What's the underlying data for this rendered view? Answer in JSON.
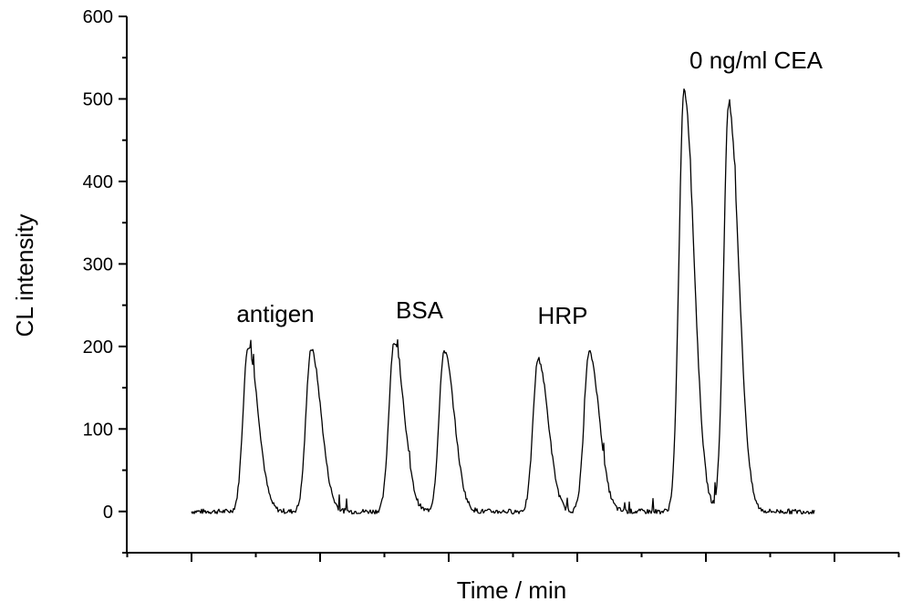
{
  "chart_data": {
    "type": "line",
    "title": "",
    "xlabel": "Time / min",
    "ylabel": "CL intensity",
    "ylim": [
      -50,
      600
    ],
    "yticks": [
      0,
      100,
      200,
      300,
      400,
      500,
      600
    ],
    "xtick_labels": "none",
    "grid": false,
    "legend": "none",
    "series": [
      {
        "peaks": [
          {
            "group": "antigen",
            "height": 200
          },
          {
            "group": "antigen",
            "height": 197
          },
          {
            "group": "BSA",
            "height": 205
          },
          {
            "group": "BSA",
            "height": 195
          },
          {
            "group": "HRP",
            "height": 185
          },
          {
            "group": "HRP",
            "height": 193
          },
          {
            "group": "0 ng/ml CEA",
            "height": 510
          },
          {
            "group": "0 ng/ml CEA",
            "height": 493
          }
        ],
        "baseline": 0
      }
    ],
    "annotations": [
      {
        "text": "antigen"
      },
      {
        "text": "BSA"
      },
      {
        "text": "HRP"
      },
      {
        "text": "0 ng/ml CEA"
      }
    ]
  }
}
